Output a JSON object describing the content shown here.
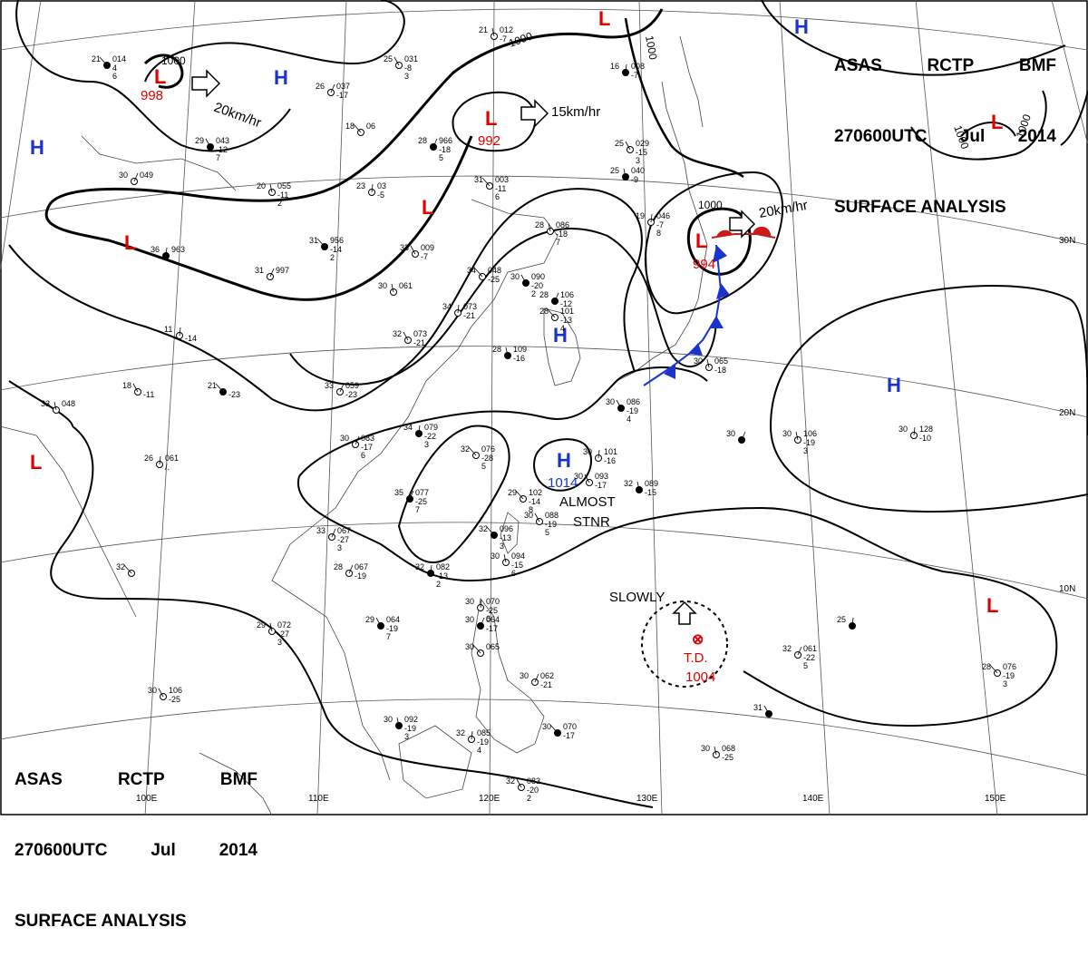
{
  "header": {
    "line1": [
      "ASAS",
      "RCTP",
      "BMF"
    ],
    "line2": [
      "270600UTC",
      "Jul",
      "2014"
    ],
    "line3": "SURFACE ANALYSIS"
  },
  "longitudes": [
    "100E",
    "110E",
    "120E",
    "130E",
    "140E",
    "150E"
  ],
  "latitudes": [
    "30N",
    "20N",
    "10N"
  ],
  "isobar_labels": [
    "1000",
    "1000",
    "1000",
    "1000",
    "1000",
    "1000"
  ],
  "systems": [
    {
      "id": "low-nw",
      "type": "L",
      "value": "998"
    },
    {
      "id": "low-n",
      "type": "L",
      "value": "992"
    },
    {
      "id": "low-japan",
      "type": "L",
      "value": "994"
    },
    {
      "id": "low-ne",
      "type": "L",
      "value": ""
    },
    {
      "id": "low-top",
      "type": "L",
      "value": ""
    },
    {
      "id": "low-china",
      "type": "L",
      "value": ""
    },
    {
      "id": "low-tibet",
      "type": "L",
      "value": ""
    },
    {
      "id": "low-india",
      "type": "L",
      "value": ""
    },
    {
      "id": "low-pacific",
      "type": "L",
      "value": ""
    },
    {
      "id": "high-mongolia",
      "type": "H",
      "value": ""
    },
    {
      "id": "high-west",
      "type": "H",
      "value": ""
    },
    {
      "id": "high-ne",
      "type": "H",
      "value": ""
    },
    {
      "id": "high-korea",
      "type": "H",
      "value": ""
    },
    {
      "id": "high-pacific",
      "type": "H",
      "value": ""
    },
    {
      "id": "high-taiwan",
      "type": "H",
      "value": "1014"
    }
  ],
  "motion": [
    {
      "id": "move-nw",
      "text": "20km/hr"
    },
    {
      "id": "move-n",
      "text": "15km/hr"
    },
    {
      "id": "move-japan",
      "text": "20km/hr"
    }
  ],
  "notes": {
    "almost": "ALMOST",
    "stnr": "STNR",
    "slowly": "SLOWLY"
  },
  "depression": {
    "label": "T.D.",
    "pressure": "1004",
    "symbol": "⊗"
  },
  "stations": [
    {
      "t": "21",
      "p": "014",
      "d": "4",
      "v": "6"
    },
    {
      "t": "25",
      "p": "031",
      "d": "-8",
      "v": "3"
    },
    {
      "t": "21",
      "p": "012",
      "d": "-7",
      "v": ""
    },
    {
      "t": "16",
      "p": "008",
      "d": "-7",
      "v": ""
    },
    {
      "t": "26",
      "p": "037",
      "d": "-17",
      "v": ""
    },
    {
      "t": "18",
      "p": "06",
      "d": "",
      "v": ""
    },
    {
      "t": "29",
      "p": "043",
      "d": "-12",
      "v": "7"
    },
    {
      "t": "20",
      "p": "055",
      "d": "-11",
      "v": "2"
    },
    {
      "t": "23",
      "p": "03",
      "d": "-5",
      "v": ""
    },
    {
      "t": "28",
      "p": "966",
      "d": "-18",
      "v": "5"
    },
    {
      "t": "31",
      "p": "003",
      "d": "-11",
      "v": "6"
    },
    {
      "t": "25",
      "p": "029",
      "d": "-15",
      "v": "3"
    },
    {
      "t": "25",
      "p": "040",
      "d": "-9",
      "v": ""
    },
    {
      "t": "19",
      "p": "046",
      "d": "-7",
      "v": "8"
    },
    {
      "t": "30",
      "p": "049",
      "d": "",
      "v": ""
    },
    {
      "t": "31",
      "p": "956",
      "d": "-14",
      "v": "2"
    },
    {
      "t": "33",
      "p": "009",
      "d": "-7",
      "v": ""
    },
    {
      "t": "28",
      "p": "086",
      "d": "-18",
      "v": "7"
    },
    {
      "t": "36",
      "p": "963",
      "d": "",
      "v": ""
    },
    {
      "t": "31",
      "p": "997",
      "d": "",
      "v": ""
    },
    {
      "t": "34",
      "p": "048",
      "d": "-25",
      "v": ""
    },
    {
      "t": "30",
      "p": "090",
      "d": "-20",
      "v": "2"
    },
    {
      "t": "30",
      "p": "061",
      "d": "",
      "v": ""
    },
    {
      "t": "34",
      "p": "073",
      "d": "-21",
      "v": ""
    },
    {
      "t": "28",
      "p": "106",
      "d": "-12",
      "v": ""
    },
    {
      "t": "28",
      "p": "101",
      "d": "-13",
      "v": "4"
    },
    {
      "t": "32",
      "p": "073",
      "d": "-21",
      "v": ""
    },
    {
      "t": "28",
      "p": "109",
      "d": "-16",
      "v": ""
    },
    {
      "t": "11",
      "p": "",
      "d": "-14",
      "v": ""
    },
    {
      "t": "33",
      "p": "059",
      "d": "-23",
      "v": ""
    },
    {
      "t": "21",
      "p": "",
      "d": "-23",
      "v": ""
    },
    {
      "t": "18",
      "p": "",
      "d": "-11",
      "v": ""
    },
    {
      "t": "33",
      "p": "048",
      "d": "",
      "v": ""
    },
    {
      "t": "34",
      "p": "079",
      "d": "-22",
      "v": "3"
    },
    {
      "t": "30",
      "p": "083",
      "d": "-17",
      "v": "6"
    },
    {
      "t": "32",
      "p": "076",
      "d": "-28",
      "v": "5"
    },
    {
      "t": "30",
      "p": "086",
      "d": "-19",
      "v": "4"
    },
    {
      "t": "30",
      "p": "065",
      "d": "-18",
      "v": ""
    },
    {
      "t": "26",
      "p": "061",
      "d": "/.",
      "v": ""
    },
    {
      "t": "35",
      "p": "077",
      "d": "-25",
      "v": "7"
    },
    {
      "t": "29",
      "p": "102",
      "d": "-14",
      "v": "8"
    },
    {
      "t": "30",
      "p": "093",
      "d": "-17",
      "v": ""
    },
    {
      "t": "32",
      "p": "089",
      "d": "-15",
      "v": ""
    },
    {
      "t": "30",
      "p": "101",
      "d": "-16",
      "v": ""
    },
    {
      "t": "33",
      "p": "067",
      "d": "-27",
      "v": "3"
    },
    {
      "t": "32",
      "p": "096",
      "d": "-13",
      "v": "3"
    },
    {
      "t": "30",
      "p": "088",
      "d": "-19",
      "v": "5"
    },
    {
      "t": "30",
      "p": "094",
      "d": "-15",
      "v": "6"
    },
    {
      "t": "32",
      "p": "082",
      "d": "-13",
      "v": "2"
    },
    {
      "t": "28",
      "p": "067",
      "d": "-19",
      "v": ""
    },
    {
      "t": "32",
      "p": "",
      "d": "",
      "v": ""
    },
    {
      "t": "29",
      "p": "064",
      "d": "-19",
      "v": "7"
    },
    {
      "t": "29",
      "p": "072",
      "d": "-27",
      "v": "3"
    },
    {
      "t": "30",
      "p": "070",
      "d": "-25",
      "v": "6"
    },
    {
      "t": "30",
      "p": "064",
      "d": "-17",
      "v": ""
    },
    {
      "t": "30",
      "p": "065",
      "d": "",
      "v": ""
    },
    {
      "t": "30",
      "p": "106",
      "d": "-25",
      "v": ""
    },
    {
      "t": "30",
      "p": "092",
      "d": "-19",
      "v": "3"
    },
    {
      "t": "32",
      "p": "085",
      "d": "-19",
      "v": "4"
    },
    {
      "t": "30",
      "p": "062",
      "d": "-21",
      "v": ""
    },
    {
      "t": "30",
      "p": "070",
      "d": "-17",
      "v": ""
    },
    {
      "t": "32",
      "p": "083",
      "d": "-20",
      "v": "2"
    },
    {
      "t": "30",
      "p": "106",
      "d": "-19",
      "v": "3"
    },
    {
      "t": "25",
      "p": "",
      "d": "",
      "v": ""
    },
    {
      "t": "32",
      "p": "061",
      "d": "-22",
      "v": "5"
    },
    {
      "t": "28",
      "p": "076",
      "d": "-19",
      "v": "3"
    },
    {
      "t": "31",
      "p": "",
      "d": "",
      "v": ""
    },
    {
      "t": "30",
      "p": "068",
      "d": "-25",
      "v": ""
    },
    {
      "t": "30",
      "p": "128",
      "d": "-10",
      "v": ""
    },
    {
      "t": "30",
      "p": "",
      "d": "",
      "v": ""
    }
  ]
}
